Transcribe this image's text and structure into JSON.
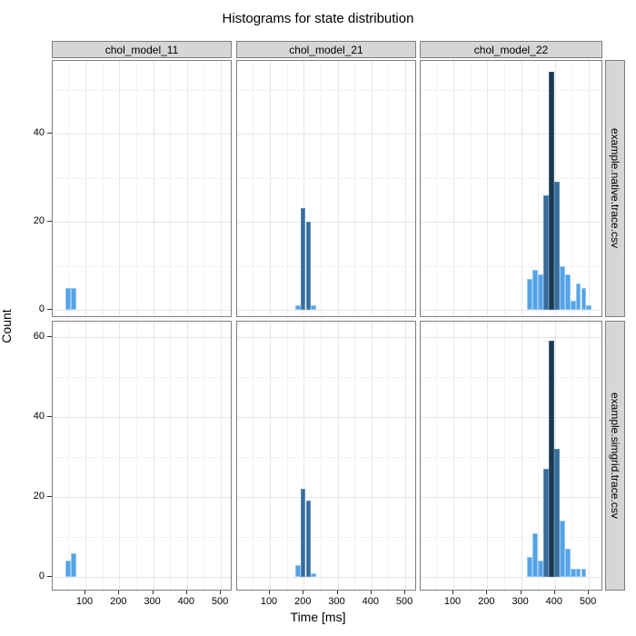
{
  "title": "Histograms for state distribution",
  "axes": {
    "x_title": "Time [ms]",
    "y_title": "Count",
    "x_ticks": [
      100,
      200,
      300,
      400,
      500
    ],
    "y_ticks_top": [
      0,
      20,
      40
    ],
    "y_ticks_bottom": [
      0,
      20,
      40,
      60
    ]
  },
  "facets": {
    "columns": [
      "chol_model_11",
      "chol_model_21",
      "chol_model_22"
    ],
    "rows": [
      "example.native.trace.csv",
      "example.simgrid.trace.csv"
    ]
  },
  "colors": {
    "bar_light": "#55A2E6",
    "bar_light_border": "#93C9F2",
    "bar_mid": "#376B9B",
    "bar_mid_border": "#5E8FB8",
    "bar_dark": "#1D3950",
    "bar_dark_border": "#3A5A75",
    "strip_bg": "#D6D6D6",
    "panel_border": "#7F7F7F",
    "grid_major": "#E6E6E6",
    "grid_minor": "#F2F2F2"
  },
  "chart_data": {
    "type": "bar",
    "subtype": "faceted-histogram-grid",
    "title": "Histograms for state distribution",
    "xlabel": "Time [ms]",
    "ylabel": "Count",
    "x_range_ms": [
      0,
      535
    ],
    "bin_width_ms": 16,
    "grid": "major+minor",
    "legend": "none",
    "facet_columns": [
      "chol_model_11",
      "chol_model_21",
      "chol_model_22"
    ],
    "facet_rows": [
      "example.native.trace.csv",
      "example.simgrid.trace.csv"
    ],
    "row_y_ticks": [
      [
        0,
        20,
        40
      ],
      [
        0,
        20,
        40,
        60
      ]
    ],
    "panels": [
      {
        "row": 0,
        "col": 0,
        "bars": [
          {
            "t": 41,
            "count": 5,
            "shade": "light"
          },
          {
            "t": 57,
            "count": 5,
            "shade": "light"
          }
        ]
      },
      {
        "row": 0,
        "col": 1,
        "bars": [
          {
            "t": 174,
            "count": 1,
            "shade": "light"
          },
          {
            "t": 190,
            "count": 23,
            "shade": "mid"
          },
          {
            "t": 206,
            "count": 20,
            "shade": "mid"
          },
          {
            "t": 222,
            "count": 1,
            "shade": "light"
          }
        ]
      },
      {
        "row": 0,
        "col": 2,
        "bars": [
          {
            "t": 317,
            "count": 7,
            "shade": "light"
          },
          {
            "t": 333,
            "count": 9,
            "shade": "light"
          },
          {
            "t": 349,
            "count": 8,
            "shade": "light"
          },
          {
            "t": 365,
            "count": 26,
            "shade": "mid"
          },
          {
            "t": 381,
            "count": 54,
            "shade": "dark"
          },
          {
            "t": 397,
            "count": 29,
            "shade": "mid"
          },
          {
            "t": 413,
            "count": 10,
            "shade": "light"
          },
          {
            "t": 429,
            "count": 8,
            "shade": "light"
          },
          {
            "t": 445,
            "count": 2,
            "shade": "light"
          },
          {
            "t": 461,
            "count": 6,
            "shade": "light"
          },
          {
            "t": 477,
            "count": 5,
            "shade": "light"
          },
          {
            "t": 493,
            "count": 1,
            "shade": "light"
          }
        ]
      },
      {
        "row": 1,
        "col": 0,
        "bars": [
          {
            "t": 41,
            "count": 4,
            "shade": "light"
          },
          {
            "t": 57,
            "count": 6,
            "shade": "light"
          }
        ]
      },
      {
        "row": 1,
        "col": 1,
        "bars": [
          {
            "t": 174,
            "count": 3,
            "shade": "light"
          },
          {
            "t": 190,
            "count": 22,
            "shade": "mid"
          },
          {
            "t": 206,
            "count": 19,
            "shade": "mid"
          },
          {
            "t": 222,
            "count": 1,
            "shade": "light"
          }
        ]
      },
      {
        "row": 1,
        "col": 2,
        "bars": [
          {
            "t": 317,
            "count": 5,
            "shade": "light"
          },
          {
            "t": 333,
            "count": 11,
            "shade": "light"
          },
          {
            "t": 349,
            "count": 4,
            "shade": "light"
          },
          {
            "t": 365,
            "count": 27,
            "shade": "mid"
          },
          {
            "t": 381,
            "count": 59,
            "shade": "dark"
          },
          {
            "t": 397,
            "count": 32,
            "shade": "mid"
          },
          {
            "t": 413,
            "count": 14,
            "shade": "light"
          },
          {
            "t": 429,
            "count": 7,
            "shade": "light"
          },
          {
            "t": 445,
            "count": 2,
            "shade": "light"
          },
          {
            "t": 461,
            "count": 2,
            "shade": "light"
          },
          {
            "t": 477,
            "count": 2,
            "shade": "light"
          }
        ]
      }
    ]
  }
}
